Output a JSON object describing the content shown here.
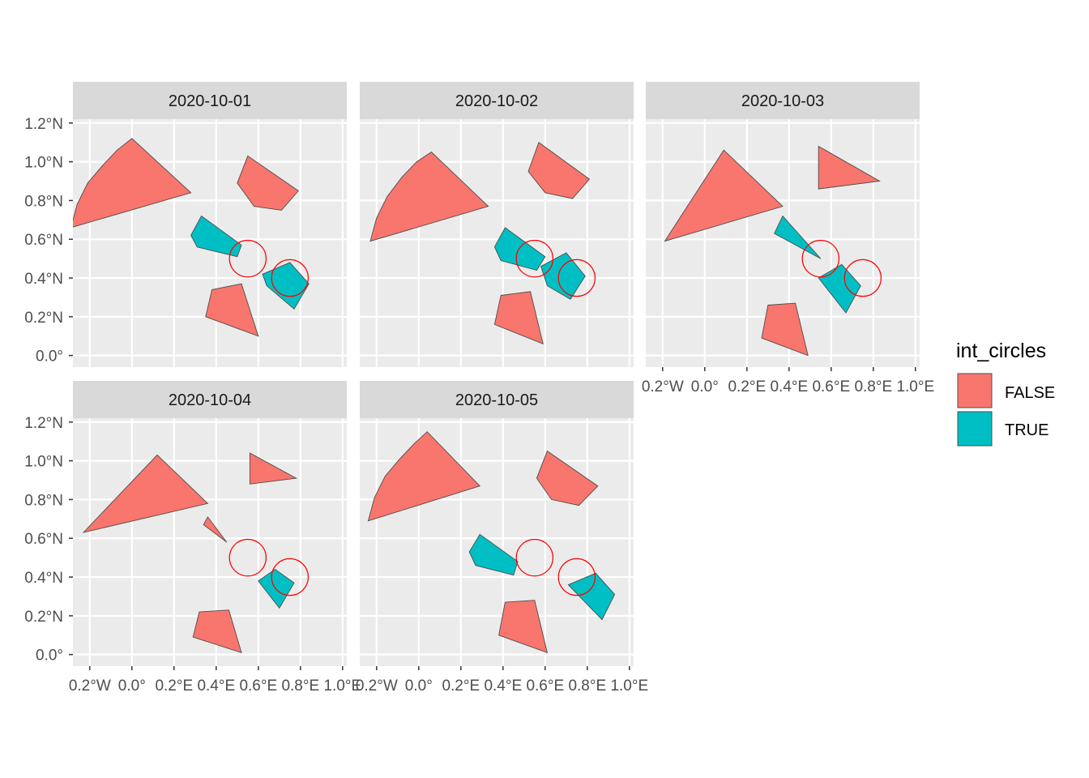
{
  "chart_data": {
    "type": "map",
    "ylabel": "",
    "xlabel": "",
    "xlim": [
      -0.28,
      1.02
    ],
    "ylim": [
      -0.06,
      1.22
    ],
    "x_ticks": [
      {
        "value": -0.2,
        "label": "0.2°W"
      },
      {
        "value": 0.0,
        "label": "0.0°"
      },
      {
        "value": 0.2,
        "label": "0.2°E"
      },
      {
        "value": 0.4,
        "label": "0.4°E"
      },
      {
        "value": 0.6,
        "label": "0.6°E"
      },
      {
        "value": 0.8,
        "label": "0.8°E"
      },
      {
        "value": 1.0,
        "label": "1.0°E"
      }
    ],
    "y_ticks": [
      {
        "value": 0.0,
        "label": "0.0°"
      },
      {
        "value": 0.2,
        "label": "0.2°N"
      },
      {
        "value": 0.4,
        "label": "0.4°N"
      },
      {
        "value": 0.6,
        "label": "0.6°N"
      },
      {
        "value": 0.8,
        "label": "0.8°N"
      },
      {
        "value": 1.0,
        "label": "1.0°N"
      },
      {
        "value": 1.2,
        "label": "1.2°N"
      }
    ],
    "legend": {
      "title": "int_circles",
      "position": "right",
      "entries": [
        {
          "label": "FALSE",
          "color": "#F8766D"
        },
        {
          "label": "TRUE",
          "color": "#00BFC4"
        }
      ]
    },
    "colors": {
      "FALSE": "#F8766D",
      "TRUE": "#00BFC4",
      "circle_stroke": "#FF0000",
      "panel_bg": "#EBEBEB",
      "strip_bg": "#D9D9D9",
      "grid": "#FFFFFF",
      "polygon_outline": "#4D4D4D"
    },
    "circles": [
      {
        "cx": 0.55,
        "cy": 0.5,
        "r": 0.087
      },
      {
        "cx": 0.75,
        "cy": 0.4,
        "r": 0.087
      }
    ],
    "panels": [
      {
        "label": "2020-10-01",
        "polygons": [
          {
            "flag": "FALSE",
            "points": [
              [
                -0.29,
                0.66
              ],
              [
                -0.26,
                0.78
              ],
              [
                -0.21,
                0.89
              ],
              [
                -0.14,
                0.98
              ],
              [
                -0.07,
                1.06
              ],
              [
                0.0,
                1.12
              ],
              [
                0.28,
                0.84
              ]
            ]
          },
          {
            "flag": "FALSE",
            "points": [
              [
                0.55,
                1.03
              ],
              [
                0.5,
                0.89
              ],
              [
                0.58,
                0.77
              ],
              [
                0.71,
                0.75
              ],
              [
                0.79,
                0.85
              ]
            ]
          },
          {
            "flag": "TRUE",
            "points": [
              [
                0.33,
                0.72
              ],
              [
                0.28,
                0.62
              ],
              [
                0.31,
                0.56
              ],
              [
                0.5,
                0.51
              ],
              [
                0.52,
                0.57
              ]
            ]
          },
          {
            "flag": "TRUE",
            "points": [
              [
                0.62,
                0.42
              ],
              [
                0.75,
                0.48
              ],
              [
                0.84,
                0.37
              ],
              [
                0.77,
                0.24
              ],
              [
                0.64,
                0.36
              ]
            ]
          },
          {
            "flag": "FALSE",
            "points": [
              [
                0.38,
                0.34
              ],
              [
                0.52,
                0.37
              ],
              [
                0.6,
                0.1
              ],
              [
                0.35,
                0.2
              ]
            ]
          }
        ]
      },
      {
        "label": "2020-10-02",
        "polygons": [
          {
            "flag": "FALSE",
            "points": [
              [
                -0.23,
                0.59
              ],
              [
                -0.2,
                0.71
              ],
              [
                -0.15,
                0.82
              ],
              [
                -0.08,
                0.92
              ],
              [
                -0.01,
                1.0
              ],
              [
                0.06,
                1.05
              ],
              [
                0.33,
                0.77
              ]
            ]
          },
          {
            "flag": "FALSE",
            "points": [
              [
                0.57,
                1.1
              ],
              [
                0.52,
                0.95
              ],
              [
                0.6,
                0.84
              ],
              [
                0.73,
                0.81
              ],
              [
                0.81,
                0.91
              ]
            ]
          },
          {
            "flag": "TRUE",
            "points": [
              [
                0.41,
                0.66
              ],
              [
                0.36,
                0.56
              ],
              [
                0.39,
                0.49
              ],
              [
                0.56,
                0.44
              ],
              [
                0.6,
                0.51
              ]
            ]
          },
          {
            "flag": "TRUE",
            "points": [
              [
                0.58,
                0.46
              ],
              [
                0.7,
                0.53
              ],
              [
                0.79,
                0.41
              ],
              [
                0.72,
                0.29
              ],
              [
                0.61,
                0.36
              ]
            ]
          },
          {
            "flag": "FALSE",
            "points": [
              [
                0.39,
                0.31
              ],
              [
                0.53,
                0.33
              ],
              [
                0.59,
                0.06
              ],
              [
                0.36,
                0.16
              ]
            ]
          }
        ]
      },
      {
        "label": "2020-10-03",
        "polygons": [
          {
            "flag": "FALSE",
            "points": [
              [
                -0.19,
                0.59
              ],
              [
                0.09,
                1.06
              ],
              [
                0.37,
                0.77
              ]
            ]
          },
          {
            "flag": "FALSE",
            "points": [
              [
                0.54,
                1.08
              ],
              [
                0.54,
                0.86
              ],
              [
                0.83,
                0.9
              ]
            ]
          },
          {
            "flag": "TRUE",
            "points": [
              [
                0.37,
                0.72
              ],
              [
                0.33,
                0.63
              ],
              [
                0.55,
                0.5
              ]
            ]
          },
          {
            "flag": "TRUE",
            "points": [
              [
                0.54,
                0.4
              ],
              [
                0.65,
                0.47
              ],
              [
                0.74,
                0.36
              ],
              [
                0.67,
                0.22
              ]
            ]
          },
          {
            "flag": "FALSE",
            "points": [
              [
                0.3,
                0.26
              ],
              [
                0.43,
                0.27
              ],
              [
                0.49,
                0.0
              ],
              [
                0.27,
                0.09
              ]
            ]
          }
        ]
      },
      {
        "label": "2020-10-04",
        "polygons": [
          {
            "flag": "FALSE",
            "points": [
              [
                -0.23,
                0.63
              ],
              [
                0.12,
                1.03
              ],
              [
                0.36,
                0.78
              ]
            ]
          },
          {
            "flag": "FALSE",
            "points": [
              [
                0.56,
                1.04
              ],
              [
                0.56,
                0.88
              ],
              [
                0.78,
                0.91
              ]
            ]
          },
          {
            "flag": "FALSE",
            "points": [
              [
                0.36,
                0.71
              ],
              [
                0.34,
                0.67
              ],
              [
                0.45,
                0.58
              ]
            ]
          },
          {
            "flag": "TRUE",
            "points": [
              [
                0.6,
                0.38
              ],
              [
                0.68,
                0.44
              ],
              [
                0.77,
                0.37
              ],
              [
                0.7,
                0.24
              ]
            ]
          },
          {
            "flag": "FALSE",
            "points": [
              [
                0.32,
                0.22
              ],
              [
                0.46,
                0.23
              ],
              [
                0.52,
                0.01
              ],
              [
                0.29,
                0.09
              ]
            ]
          }
        ]
      },
      {
        "label": "2020-10-05",
        "polygons": [
          {
            "flag": "FALSE",
            "points": [
              [
                -0.24,
                0.69
              ],
              [
                -0.21,
                0.81
              ],
              [
                -0.16,
                0.92
              ],
              [
                -0.09,
                1.01
              ],
              [
                -0.02,
                1.09
              ],
              [
                0.04,
                1.15
              ],
              [
                0.29,
                0.87
              ]
            ]
          },
          {
            "flag": "FALSE",
            "points": [
              [
                0.61,
                1.05
              ],
              [
                0.56,
                0.91
              ],
              [
                0.63,
                0.8
              ],
              [
                0.76,
                0.77
              ],
              [
                0.85,
                0.87
              ]
            ]
          },
          {
            "flag": "TRUE",
            "points": [
              [
                0.29,
                0.62
              ],
              [
                0.24,
                0.53
              ],
              [
                0.27,
                0.46
              ],
              [
                0.45,
                0.41
              ],
              [
                0.47,
                0.48
              ]
            ]
          },
          {
            "flag": "TRUE",
            "points": [
              [
                0.71,
                0.36
              ],
              [
                0.84,
                0.42
              ],
              [
                0.93,
                0.31
              ],
              [
                0.87,
                0.18
              ]
            ]
          },
          {
            "flag": "FALSE",
            "points": [
              [
                0.41,
                0.27
              ],
              [
                0.55,
                0.28
              ],
              [
                0.61,
                0.01
              ],
              [
                0.38,
                0.1
              ]
            ]
          }
        ]
      }
    ]
  }
}
